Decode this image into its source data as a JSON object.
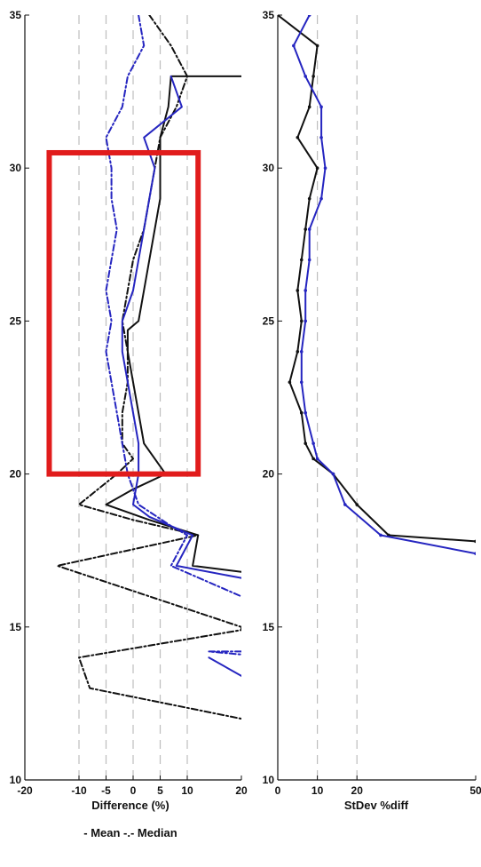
{
  "chart_data": [
    {
      "type": "line",
      "xlabel": "Difference (%)",
      "legend": "- Mean -.- Median",
      "xlim": [
        -20,
        20
      ],
      "ylim": [
        10,
        35
      ],
      "x_ticks": [
        -20,
        -10,
        -5,
        0,
        5,
        10,
        20
      ],
      "y_ticks": [
        10,
        15,
        20,
        25,
        30,
        35
      ],
      "grid_x": [
        -10,
        -5,
        0,
        5,
        10
      ],
      "highlight_box": {
        "x": [
          -15.5,
          12
        ],
        "y": [
          20,
          30.5
        ],
        "color": "#e11c1c"
      },
      "series": [
        {
          "color": "#111111",
          "style": "solid",
          "points": [
            [
              20,
              33
            ],
            [
              7,
              33
            ],
            [
              6.5,
              32
            ],
            [
              5,
              31
            ],
            [
              5,
              30
            ],
            [
              5,
              29
            ],
            [
              4,
              28
            ],
            [
              3,
              27
            ],
            [
              2,
              26
            ],
            [
              1,
              25
            ],
            [
              -1,
              24.7
            ],
            [
              -1,
              24
            ],
            [
              0,
              23
            ],
            [
              1,
              22
            ],
            [
              2,
              21
            ],
            [
              6,
              20
            ],
            [
              0,
              19.5
            ],
            [
              -5,
              19
            ],
            [
              3,
              18.5
            ],
            [
              12,
              18
            ],
            [
              11,
              17
            ],
            [
              20,
              16.8
            ]
          ]
        },
        {
          "color": "#111111",
          "style": "dashdot",
          "points": [
            [
              3,
              35
            ],
            [
              7,
              34
            ],
            [
              10,
              33
            ],
            [
              8,
              32
            ],
            [
              5,
              31
            ],
            [
              4,
              30
            ],
            [
              3,
              29
            ],
            [
              2,
              28
            ],
            [
              0,
              27
            ],
            [
              -1,
              26
            ],
            [
              -2,
              25
            ],
            [
              -1,
              24
            ],
            [
              -1,
              23
            ],
            [
              -2,
              22
            ],
            [
              -2,
              21
            ],
            [
              0,
              20.5
            ],
            [
              -3,
              20
            ],
            [
              -10,
              19
            ],
            [
              0,
              18.5
            ],
            [
              12,
              18
            ],
            [
              -14,
              17
            ],
            [
              20,
              15
            ],
            [
              20,
              14.9
            ],
            [
              -10,
              14
            ],
            [
              -8,
              13
            ],
            [
              20,
              12
            ]
          ]
        },
        {
          "color": "#2525c0",
          "style": "solid",
          "points": [
            [
              7,
              33
            ],
            [
              9,
              32
            ],
            [
              2,
              31
            ],
            [
              4,
              30
            ],
            [
              3,
              29
            ],
            [
              2,
              28
            ],
            [
              1,
              27
            ],
            [
              0,
              26
            ],
            [
              -2,
              25
            ],
            [
              -2,
              24
            ],
            [
              -1,
              23
            ],
            [
              0,
              22
            ],
            [
              1,
              21
            ],
            [
              1,
              20
            ],
            [
              0,
              19
            ],
            [
              3,
              18.6
            ],
            [
              11,
              18
            ],
            [
              8,
              17
            ],
            [
              20,
              16.6
            ]
          ]
        },
        {
          "color": "#2525c0",
          "style": "dashdot",
          "points": [
            [
              1,
              35
            ],
            [
              2,
              34
            ],
            [
              -1,
              33
            ],
            [
              -2,
              32
            ],
            [
              -5,
              31
            ],
            [
              -4,
              30
            ],
            [
              -4,
              29
            ],
            [
              -3,
              28
            ],
            [
              -4,
              27
            ],
            [
              -5,
              26
            ],
            [
              -4,
              25
            ],
            [
              -5,
              24
            ],
            [
              -4,
              23
            ],
            [
              -3,
              22
            ],
            [
              -2,
              21
            ],
            [
              -1,
              20
            ],
            [
              1,
              19
            ],
            [
              7,
              18.3
            ],
            [
              10,
              18
            ],
            [
              7,
              17
            ],
            [
              20,
              16
            ]
          ]
        },
        {
          "color": "#2525c0",
          "style": "dashdot",
          "points": [
            [
              20,
              14.2
            ],
            [
              14,
              14.2
            ],
            [
              20,
              14.1
            ]
          ]
        },
        {
          "color": "#2525c0",
          "style": "solid",
          "points": [
            [
              14,
              14
            ],
            [
              20,
              13.4
            ]
          ]
        }
      ]
    },
    {
      "type": "line",
      "xlabel": "StDev %diff",
      "xlim": [
        0,
        50
      ],
      "ylim": [
        10,
        35
      ],
      "x_ticks": [
        0,
        10,
        20,
        50
      ],
      "y_ticks": [
        10,
        15,
        20,
        25,
        30,
        35
      ],
      "grid_x": [
        10,
        20
      ],
      "series": [
        {
          "color": "#111111",
          "style": "solid",
          "points": [
            [
              0,
              35
            ],
            [
              10,
              34
            ],
            [
              9,
              33
            ],
            [
              8,
              32
            ],
            [
              5,
              31
            ],
            [
              10,
              30
            ],
            [
              8,
              29
            ],
            [
              7,
              28
            ],
            [
              6,
              27
            ],
            [
              5,
              26
            ],
            [
              6,
              25
            ],
            [
              5,
              24
            ],
            [
              3,
              23
            ],
            [
              6,
              22
            ],
            [
              7,
              21
            ],
            [
              9,
              20.5
            ],
            [
              14,
              20
            ],
            [
              20,
              19
            ],
            [
              28,
              18
            ],
            [
              50,
              17.8
            ]
          ]
        },
        {
          "color": "#2525c0",
          "style": "solid",
          "points": [
            [
              8,
              35
            ],
            [
              4,
              34
            ],
            [
              7,
              33
            ],
            [
              11,
              32
            ],
            [
              11,
              31
            ],
            [
              12,
              30
            ],
            [
              11,
              29
            ],
            [
              8,
              28
            ],
            [
              8,
              27
            ],
            [
              7,
              26
            ],
            [
              7,
              25
            ],
            [
              6,
              24
            ],
            [
              6,
              23
            ],
            [
              7,
              22
            ],
            [
              9,
              21
            ],
            [
              10,
              20.5
            ],
            [
              14,
              20
            ],
            [
              17,
              19
            ],
            [
              26,
              18
            ],
            [
              50,
              17.4
            ]
          ]
        }
      ]
    }
  ]
}
